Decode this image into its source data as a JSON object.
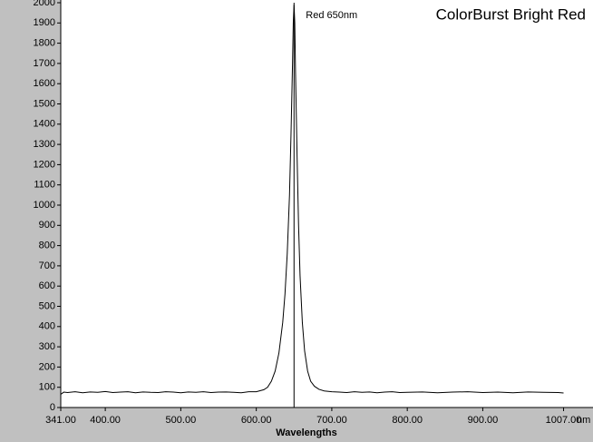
{
  "chart_data": {
    "type": "line",
    "title": "ColorBurst Bright Red",
    "xlabel": "Wavelengths",
    "xunit": "nm",
    "x": [
      341,
      345,
      350,
      360,
      370,
      380,
      390,
      400,
      410,
      420,
      430,
      440,
      450,
      460,
      470,
      480,
      490,
      500,
      510,
      520,
      530,
      540,
      550,
      560,
      570,
      580,
      590,
      600,
      610,
      615,
      620,
      625,
      630,
      635,
      638,
      641,
      644,
      646,
      648,
      649,
      650,
      651,
      652,
      654,
      656,
      658,
      661,
      664,
      668,
      672,
      677,
      683,
      690,
      700,
      710,
      720,
      730,
      740,
      750,
      760,
      770,
      780,
      790,
      800,
      820,
      840,
      860,
      880,
      900,
      920,
      940,
      960,
      980,
      1000,
      1007
    ],
    "values": [
      65,
      76,
      74,
      78,
      73,
      77,
      75,
      79,
      74,
      76,
      78,
      73,
      77,
      75,
      74,
      78,
      76,
      73,
      77,
      75,
      78,
      74,
      76,
      77,
      75,
      73,
      78,
      78,
      88,
      100,
      130,
      180,
      270,
      420,
      560,
      760,
      1050,
      1350,
      1700,
      1900,
      1990,
      1900,
      1650,
      1250,
      900,
      650,
      420,
      280,
      180,
      130,
      105,
      90,
      82,
      78,
      76,
      74,
      78,
      75,
      77,
      73,
      76,
      78,
      74,
      75,
      77,
      73,
      76,
      78,
      74,
      76,
      73,
      77,
      75,
      74,
      72
    ],
    "color": "#000000",
    "xlim": [
      341,
      1046
    ],
    "ylim": [
      0,
      2000
    ],
    "xticks": [
      {
        "value": 341,
        "label": "341.00"
      },
      {
        "value": 400,
        "label": "400.00"
      },
      {
        "value": 500,
        "label": "500.00"
      },
      {
        "value": 600,
        "label": "600.00"
      },
      {
        "value": 700,
        "label": "700.00"
      },
      {
        "value": 800,
        "label": "800.00"
      },
      {
        "value": 900,
        "label": "900.00"
      },
      {
        "value": 1007,
        "label": "1007.00"
      }
    ],
    "yticks": [
      0,
      100,
      200,
      300,
      400,
      500,
      600,
      700,
      800,
      900,
      1000,
      1100,
      1200,
      1300,
      1400,
      1500,
      1600,
      1700,
      1800,
      1900,
      2000
    ],
    "annotations": [
      {
        "text": "Red 650nm",
        "x": 650
      }
    ]
  }
}
